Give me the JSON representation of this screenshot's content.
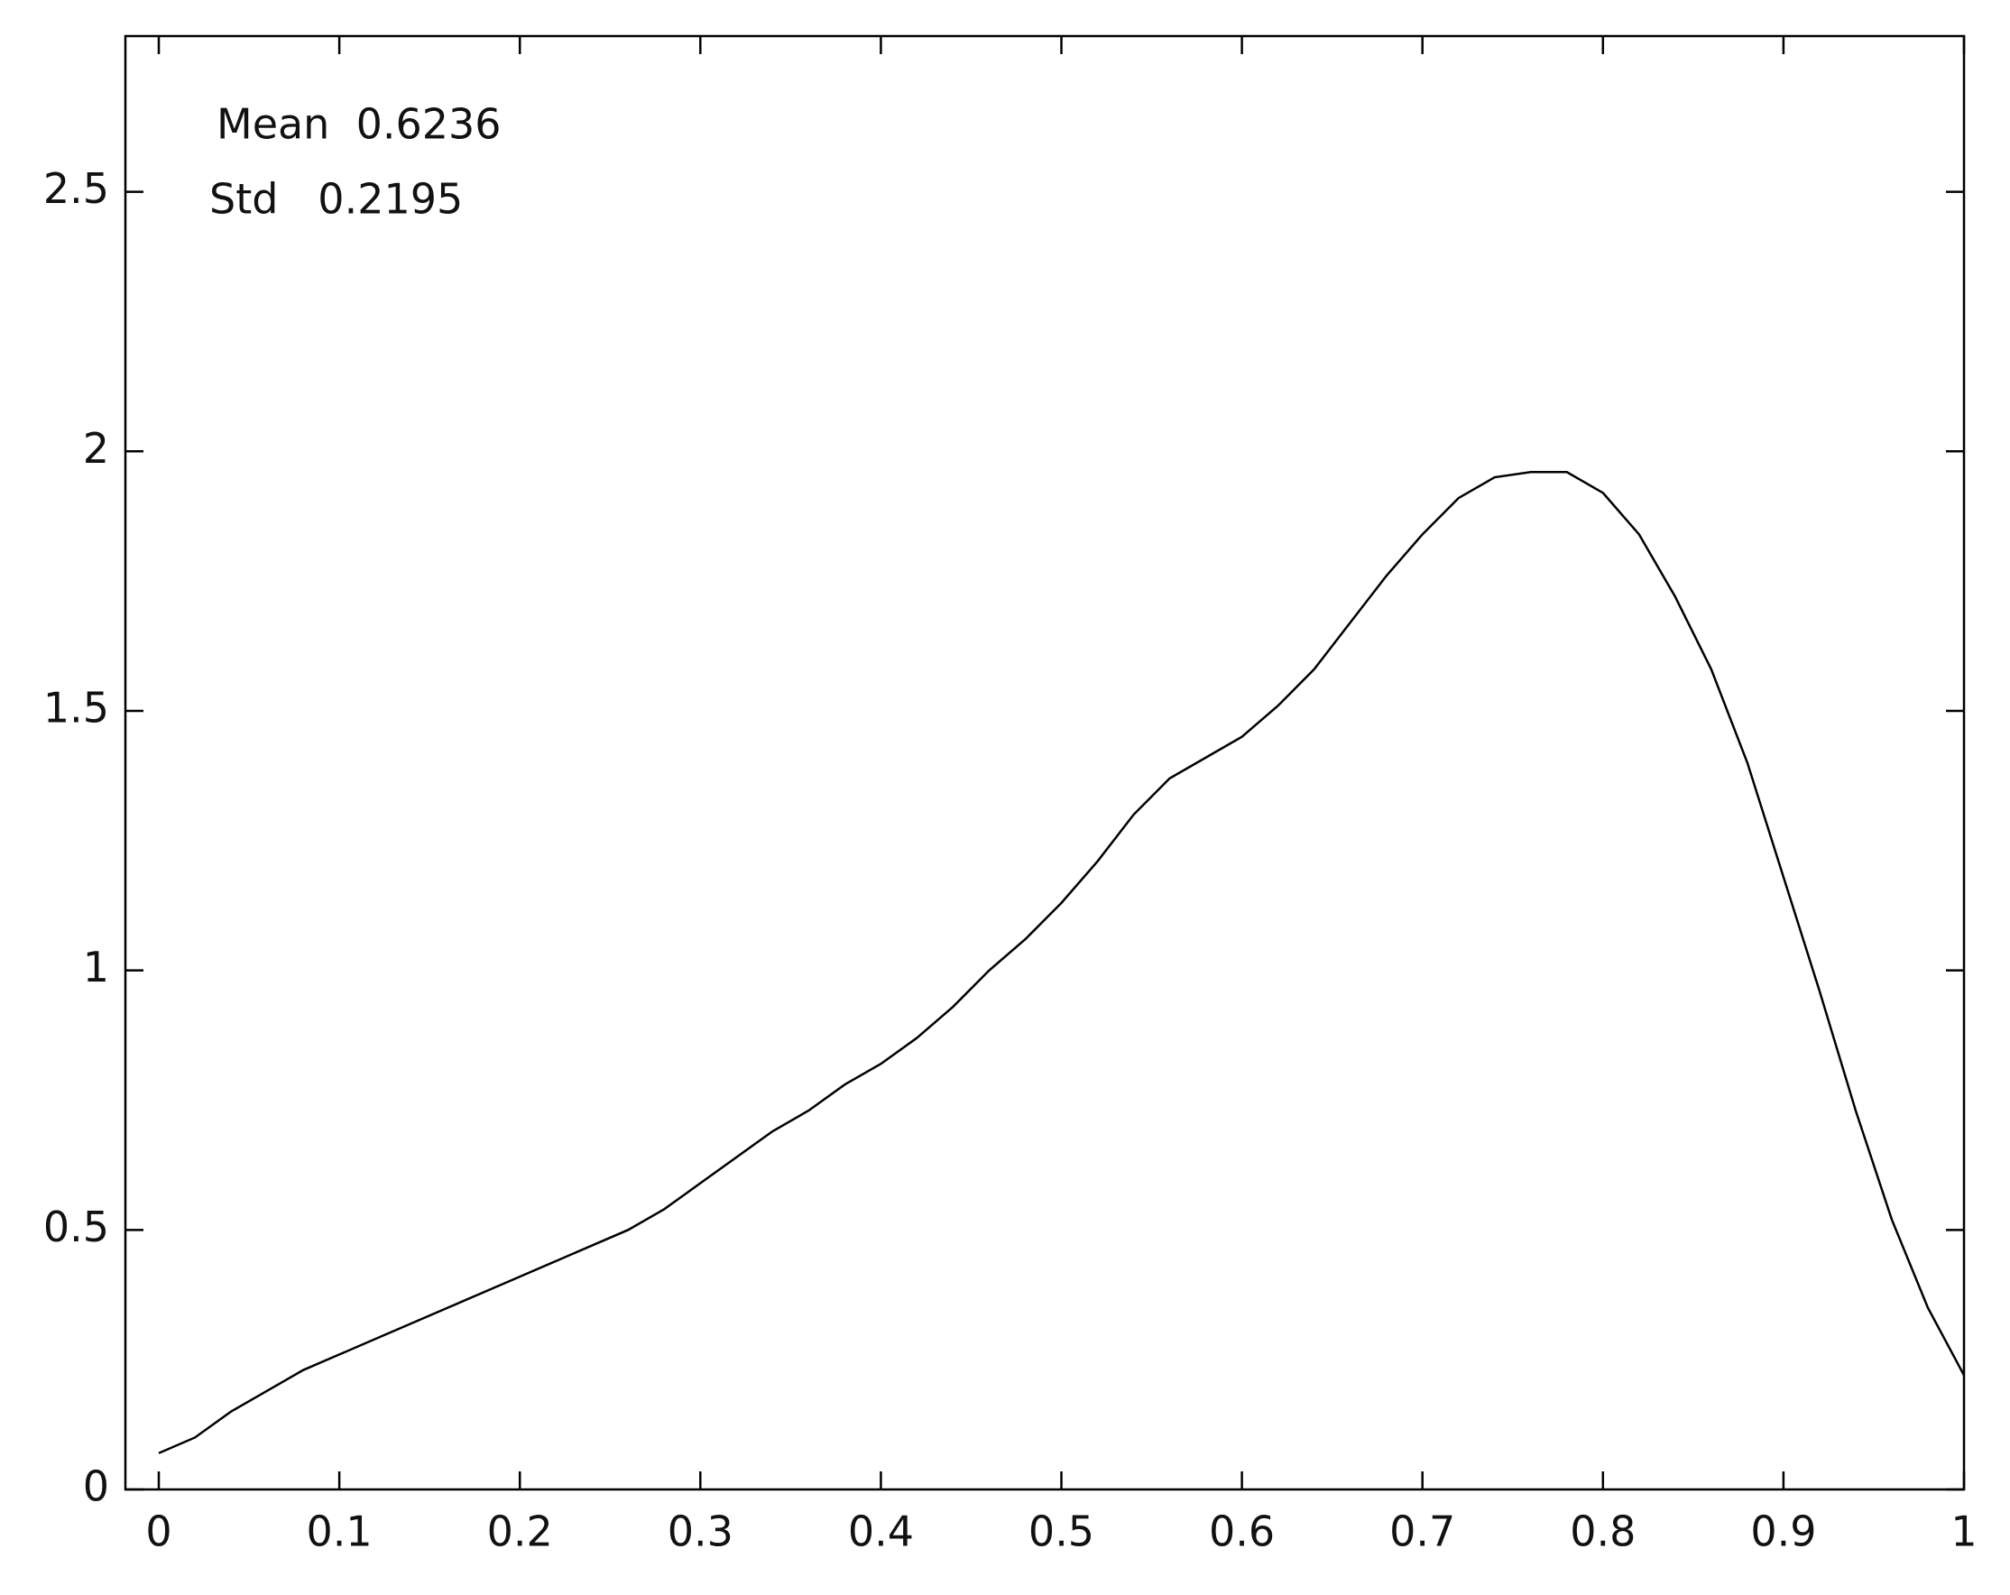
{
  "chart_data": {
    "type": "line",
    "annotations": [
      "Mean  0.6236",
      "Std   0.2195"
    ],
    "x": [
      0,
      0.02,
      0.04,
      0.06,
      0.08,
      0.1,
      0.12,
      0.14,
      0.16,
      0.18,
      0.2,
      0.22,
      0.24,
      0.26,
      0.28,
      0.3,
      0.32,
      0.34,
      0.36,
      0.38,
      0.4,
      0.42,
      0.44,
      0.46,
      0.48,
      0.5,
      0.52,
      0.54,
      0.56,
      0.58,
      0.6,
      0.62,
      0.64,
      0.66,
      0.68,
      0.7,
      0.72,
      0.74,
      0.76,
      0.78,
      0.8,
      0.82,
      0.84,
      0.86,
      0.88,
      0.9,
      0.92,
      0.94,
      0.96,
      0.98,
      1.0
    ],
    "series": [
      {
        "color": "#000000",
        "values": [
          0.07,
          0.1,
          0.15,
          0.19,
          0.23,
          0.26,
          0.29,
          0.32,
          0.35,
          0.38,
          0.41,
          0.44,
          0.47,
          0.5,
          0.54,
          0.59,
          0.64,
          0.69,
          0.73,
          0.78,
          0.82,
          0.87,
          0.93,
          1.0,
          1.06,
          1.13,
          1.21,
          1.3,
          1.37,
          1.41,
          1.45,
          1.51,
          1.58,
          1.67,
          1.76,
          1.84,
          1.91,
          1.95,
          1.96,
          1.96,
          1.92,
          1.84,
          1.72,
          1.58,
          1.4,
          1.18,
          0.96,
          0.73,
          0.52,
          0.35,
          0.22
        ]
      }
    ],
    "xlim": [
      -0.0185,
      1
    ],
    "ylim": [
      0,
      2.8
    ],
    "xticks": [
      0,
      0.1,
      0.2,
      0.3,
      0.4,
      0.5,
      0.6,
      0.7,
      0.8,
      0.9,
      1
    ],
    "yticks": [
      0,
      0.5,
      1,
      1.5,
      2,
      2.5
    ]
  }
}
